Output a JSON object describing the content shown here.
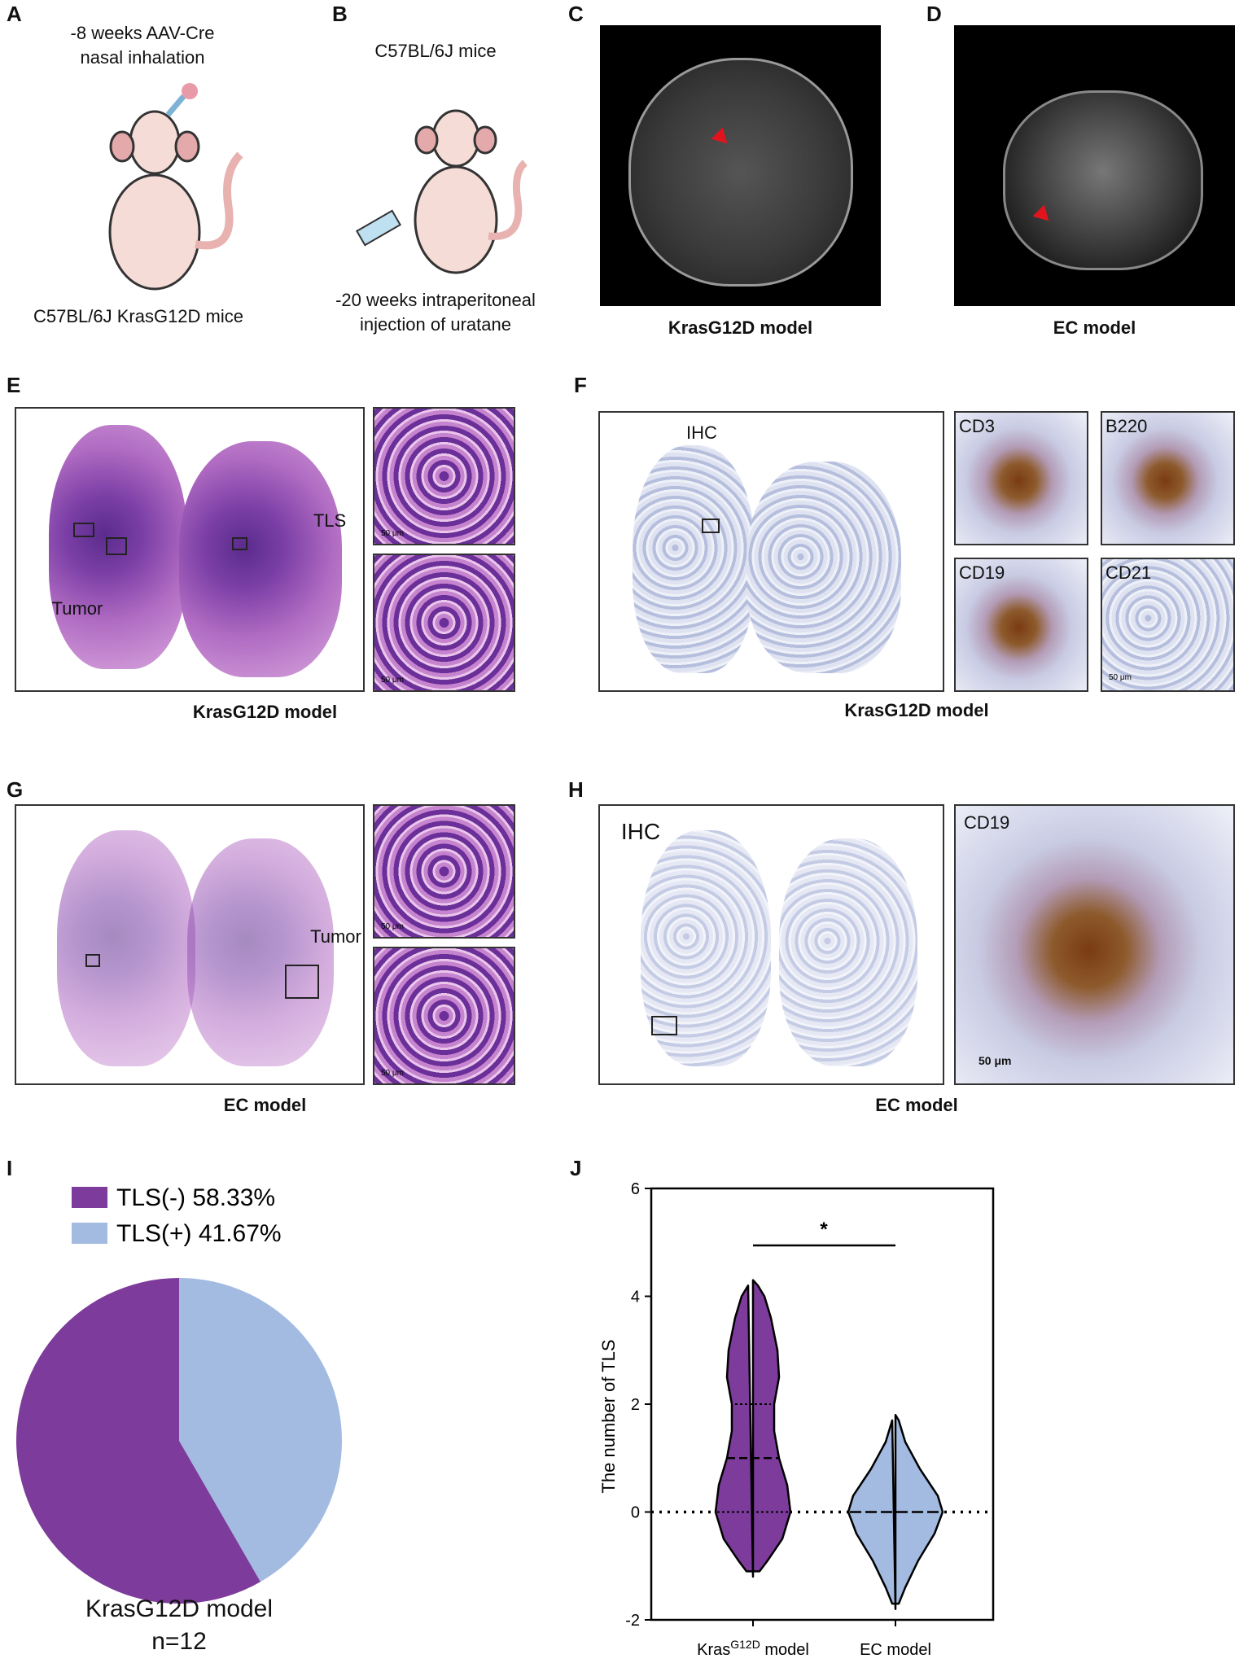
{
  "panels": {
    "A": {
      "label": "A",
      "text_top": "-8 weeks AAV-Cre",
      "text_top2": "nasal inhalation",
      "text_bottom": "C57BL/6J KrasG12D mice"
    },
    "B": {
      "label": "B",
      "text_top": "C57BL/6J mice",
      "text_bottom": "-20 weeks intraperitoneal",
      "text_bottom2": "injection of uratane"
    },
    "C": {
      "label": "C",
      "caption": "KrasG12D model"
    },
    "D": {
      "label": "D",
      "caption": "EC model"
    },
    "E": {
      "label": "E",
      "caption": "KrasG12D model",
      "tls": "TLS",
      "tumor": "Tumor",
      "scale1": "50 μm",
      "scale2": "50 μm"
    },
    "F": {
      "label": "F",
      "caption": "KrasG12D model",
      "ihc": "IHC",
      "cd3": "CD3",
      "b220": "B220",
      "cd19": "CD19",
      "cd21": "CD21",
      "scale": "50 μm"
    },
    "G": {
      "label": "G",
      "caption": "EC model",
      "tumor": "Tumor",
      "scale1": "50 μm",
      "scale2": "50 μm"
    },
    "H": {
      "label": "H",
      "caption": "EC model",
      "ihc": "IHC",
      "cd19": "CD19",
      "scale": "50 μm"
    },
    "I": {
      "label": "I",
      "caption": "KrasG12D model",
      "n": "n=12"
    },
    "J": {
      "label": "J",
      "ylabel": "The number of TLS",
      "sig": "*",
      "x1_main": "Kras",
      "x1_sup": "G12D",
      "x1_rest": " model",
      "x2": "EC model"
    }
  },
  "colors": {
    "purple": "#7d3b9b",
    "lightblue": "#a3bbe0",
    "red_arrow": "#e1141e"
  },
  "chart_data": [
    {
      "type": "pie",
      "title": "KrasG12D model",
      "labels": [
        "TLS(-) 58.33%",
        "TLS(+) 41.67%"
      ],
      "values": [
        58.33,
        41.67
      ],
      "colors": [
        "#7d3b9b",
        "#a3bbe0"
      ],
      "legend": "top-left",
      "annotation": "n=12"
    },
    {
      "type": "violin",
      "categories": [
        "KrasG12D model",
        "EC model"
      ],
      "ylabel": "The number of TLS",
      "ylim": [
        -2,
        6
      ],
      "yticks": [
        -2,
        0,
        2,
        4,
        6
      ],
      "series": [
        {
          "name": "KrasG12D model",
          "median": 1,
          "q1": 0,
          "q3": 2,
          "min": -1.2,
          "max": 4.3,
          "color": "#7d3b9b"
        },
        {
          "name": "EC model",
          "median": 0,
          "q1": 0,
          "q3": 0,
          "min": -1.8,
          "max": 1.8,
          "color": "#a3bbe0"
        }
      ],
      "annotation": "*",
      "reference_line": 0
    }
  ]
}
